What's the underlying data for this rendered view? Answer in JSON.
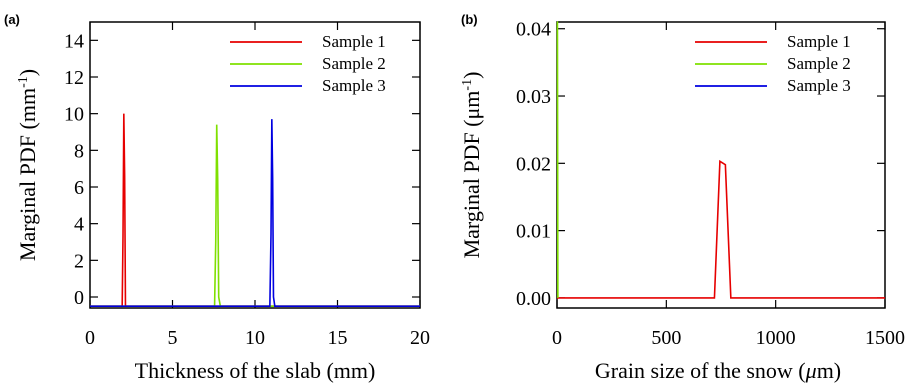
{
  "chart_data": [
    {
      "panel_label": "(a)",
      "type": "line",
      "xlabel": "Thickness of the slab (mm)",
      "ylabel_main": "Marginal PDF (mm",
      "ylabel_sup": "-1",
      "ylabel_tail": ")",
      "xlim": [
        0,
        20
      ],
      "ylim": [
        -0.6,
        15
      ],
      "xticks": [
        0,
        5,
        10,
        15,
        20
      ],
      "yticks": [
        0,
        2,
        4,
        6,
        8,
        10,
        12,
        14
      ],
      "xtick_labels": [
        "0",
        "5",
        "10",
        "15",
        "20"
      ],
      "ytick_labels": [
        "0",
        "2",
        "4",
        "6",
        "8",
        "10",
        "12",
        "14"
      ],
      "legend_position": "top-right",
      "series": [
        {
          "name": "Sample 1",
          "color": "#e60000",
          "x": [
            0,
            1.95,
            2.0,
            2.05,
            2.1,
            2.15,
            2.2,
            20
          ],
          "y": [
            -0.5,
            -0.5,
            3.3,
            10.0,
            6.6,
            -0.5,
            -0.5,
            -0.5
          ]
        },
        {
          "name": "Sample 2",
          "color": "#7fe000",
          "x": [
            0,
            7.55,
            7.62,
            7.68,
            7.74,
            7.8,
            7.9,
            20
          ],
          "y": [
            -0.5,
            -0.5,
            3.0,
            9.4,
            6.4,
            0.0,
            -0.5,
            -0.5
          ]
        },
        {
          "name": "Sample 3",
          "color": "#0000e0",
          "x": [
            0,
            10.9,
            10.97,
            11.02,
            11.07,
            11.12,
            11.2,
            20
          ],
          "y": [
            -0.5,
            -0.5,
            3.4,
            9.7,
            6.5,
            0.0,
            -0.5,
            -0.5
          ]
        }
      ]
    },
    {
      "panel_label": "(b)",
      "type": "line",
      "xlabel_main": "Grain size of the snow (",
      "xlabel_mu": "μ",
      "xlabel_tail": "m)",
      "ylabel_main": "Marginal PDF (",
      "ylabel_mu": "μ",
      "ylabel_mid": "m",
      "ylabel_sup": "-1",
      "ylabel_tail": ")",
      "xlim": [
        0,
        1500
      ],
      "ylim": [
        -0.0015,
        0.041
      ],
      "xticks": [
        0,
        500,
        1000,
        1500
      ],
      "yticks": [
        0.0,
        0.01,
        0.02,
        0.03,
        0.04
      ],
      "xtick_labels": [
        "0",
        "500",
        "1000",
        "1500"
      ],
      "ytick_labels": [
        "0.00",
        "0.01",
        "0.02",
        "0.03",
        "0.04"
      ],
      "legend_position": "top-right",
      "series": [
        {
          "name": "Sample 1",
          "color": "#e60000",
          "x": [
            0,
            720,
            745,
            770,
            795,
            1500
          ],
          "y": [
            0.0,
            0.0,
            0.0203,
            0.0198,
            0.0,
            0.0
          ]
        },
        {
          "name": "Sample 2",
          "color": "#7fe000",
          "x": [
            0,
            2,
            4
          ],
          "y": [
            0.041,
            0.041,
            0.0
          ]
        },
        {
          "name": "Sample 3",
          "color": "#0000e0",
          "x": [],
          "y": []
        }
      ]
    }
  ]
}
